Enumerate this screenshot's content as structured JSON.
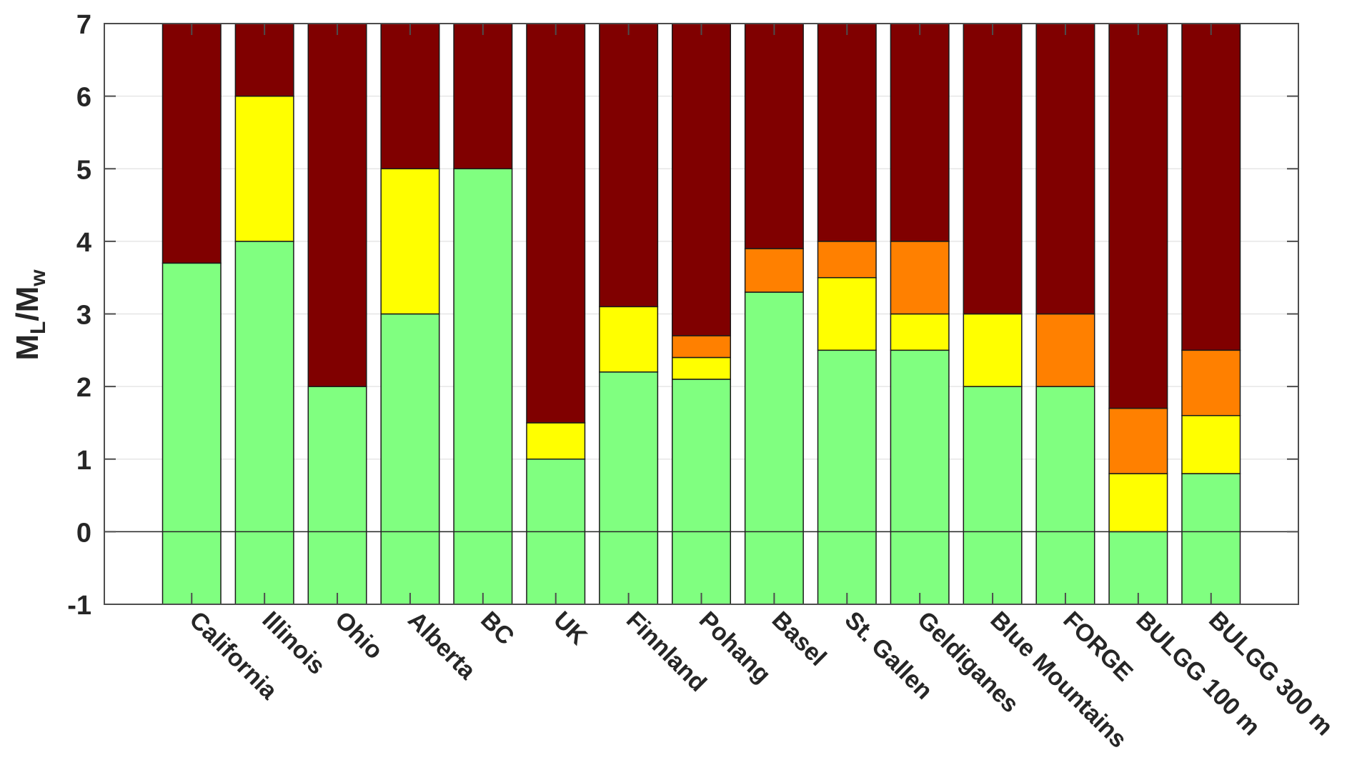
{
  "chart_data": {
    "type": "bar",
    "stacked": true,
    "title": "",
    "xlabel": "",
    "ylabel": {
      "main": "M",
      "sub1": "L",
      "mid": "/M",
      "sub2": "w",
      "text": "M_L/M_w"
    },
    "baseline": -1,
    "ylim": [
      -1,
      7
    ],
    "xlim": [
      -0.2,
      16.2
    ],
    "yticks": [
      -1,
      0,
      1,
      2,
      3,
      4,
      5,
      6,
      7
    ],
    "ytick_labels": [
      "-1",
      "0",
      "1",
      "2",
      "3",
      "4",
      "5",
      "6",
      "7"
    ],
    "grid": true,
    "zero_line": true,
    "legend": "none",
    "categories": [
      "California",
      "Illinois",
      "Ohio",
      "Alberta",
      "BC",
      "UK",
      "Finnland",
      "Pohang",
      "Basel",
      "St. Gallen",
      "Geldiganes",
      "Blue Mountains",
      "FORGE",
      "BULGG 100 m",
      "BULGG 300 m"
    ],
    "series": [
      {
        "name": "green",
        "color": "#80FF80",
        "values": [
          4.7,
          5,
          3,
          4,
          6,
          2,
          3.2,
          3.1,
          4.3,
          3.5,
          3.5,
          3,
          3,
          1,
          1.8
        ]
      },
      {
        "name": "yellow",
        "color": "#FFFF00",
        "values": [
          0,
          2,
          0,
          2,
          0,
          0.5,
          0.9,
          0.3,
          0,
          1,
          0.5,
          1,
          0,
          0.8,
          0.8
        ]
      },
      {
        "name": "orange",
        "color": "#FF8000",
        "values": [
          0,
          0,
          0,
          0,
          0,
          0,
          0,
          0.3,
          0.6,
          0.5,
          1,
          0,
          1,
          0.9,
          0.9
        ]
      },
      {
        "name": "darkred",
        "color": "#800000",
        "values": [
          3.3,
          1,
          5,
          2,
          2,
          5.5,
          3.9,
          4.3,
          3.1,
          3,
          3,
          4,
          4,
          5.3,
          4.5
        ]
      }
    ]
  }
}
